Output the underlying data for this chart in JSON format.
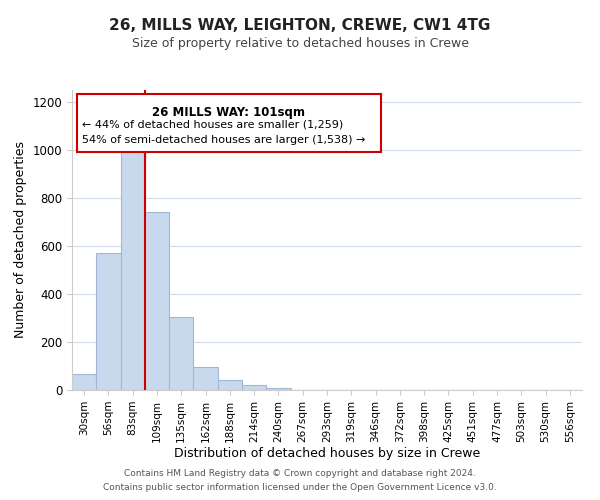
{
  "title": "26, MILLS WAY, LEIGHTON, CREWE, CW1 4TG",
  "subtitle": "Size of property relative to detached houses in Crewe",
  "xlabel": "Distribution of detached houses by size in Crewe",
  "ylabel": "Number of detached properties",
  "bar_labels": [
    "30sqm",
    "56sqm",
    "83sqm",
    "109sqm",
    "135sqm",
    "162sqm",
    "188sqm",
    "214sqm",
    "240sqm",
    "267sqm",
    "293sqm",
    "319sqm",
    "346sqm",
    "372sqm",
    "398sqm",
    "425sqm",
    "451sqm",
    "477sqm",
    "503sqm",
    "530sqm",
    "556sqm"
  ],
  "bar_heights": [
    65,
    570,
    1000,
    740,
    305,
    95,
    40,
    20,
    10,
    0,
    0,
    0,
    0,
    0,
    0,
    0,
    0,
    0,
    0,
    0,
    0
  ],
  "bar_color": "#c9d9ed",
  "bar_edge_color": "#a0b8d8",
  "vline_index": 2.5,
  "vline_color": "#cc0000",
  "ylim": [
    0,
    1250
  ],
  "yticks": [
    0,
    200,
    400,
    600,
    800,
    1000,
    1200
  ],
  "ann_line1": "26 MILLS WAY: 101sqm",
  "ann_line2": "← 44% of detached houses are smaller (1,259)",
  "ann_line3": "54% of semi-detached houses are larger (1,538) →",
  "footer_line1": "Contains HM Land Registry data © Crown copyright and database right 2024.",
  "footer_line2": "Contains public sector information licensed under the Open Government Licence v3.0.",
  "background_color": "#ffffff",
  "grid_color": "#d0dce8"
}
